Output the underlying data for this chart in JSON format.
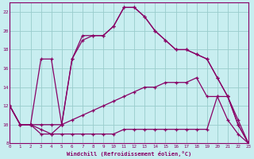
{
  "xlabel": "Windchill (Refroidissement éolien,°C)",
  "xlim": [
    0,
    23
  ],
  "ylim": [
    8,
    23
  ],
  "xticks": [
    0,
    1,
    2,
    3,
    4,
    5,
    6,
    7,
    8,
    9,
    10,
    11,
    12,
    13,
    14,
    15,
    16,
    17,
    18,
    19,
    20,
    21,
    22,
    23
  ],
  "yticks": [
    8,
    10,
    12,
    14,
    16,
    18,
    20,
    22
  ],
  "bg_color": "#c8eef0",
  "line_color": "#880066",
  "grid_color": "#99cccc",
  "lines": [
    {
      "x": [
        0,
        1,
        2,
        3,
        4,
        5,
        6,
        7,
        8,
        9,
        10,
        11,
        12,
        13,
        14,
        15,
        16,
        17,
        18,
        19,
        20,
        21,
        22,
        23
      ],
      "y": [
        12,
        10,
        10,
        9,
        9,
        10,
        17,
        19,
        19.5,
        19.5,
        20.5,
        22.5,
        22.5,
        21.5,
        20,
        19,
        18,
        18,
        17.5,
        17,
        15,
        13,
        10,
        8
      ]
    },
    {
      "x": [
        0,
        1,
        2,
        3,
        4,
        5,
        6,
        7,
        8,
        9,
        10,
        11,
        12,
        13,
        14,
        15,
        16,
        17,
        18,
        19,
        20,
        21,
        22,
        23
      ],
      "y": [
        12,
        10,
        10,
        17,
        17,
        10,
        17,
        19.5,
        19.5,
        19.5,
        20.5,
        22.5,
        22.5,
        21.5,
        20,
        19,
        18,
        18,
        17.5,
        17,
        15,
        13,
        10,
        8
      ]
    },
    {
      "x": [
        0,
        1,
        2,
        3,
        4,
        5,
        6,
        7,
        8,
        9,
        10,
        11,
        12,
        13,
        14,
        15,
        16,
        17,
        18,
        19,
        20,
        21,
        22,
        23
      ],
      "y": [
        12,
        10,
        10,
        10,
        10,
        10,
        10.5,
        11,
        11.5,
        12,
        12.5,
        13,
        13.5,
        14,
        14,
        14.5,
        14.5,
        14.5,
        15,
        13,
        13,
        13,
        10.5,
        8
      ]
    },
    {
      "x": [
        0,
        1,
        2,
        3,
        4,
        5,
        6,
        7,
        8,
        9,
        10,
        11,
        12,
        13,
        14,
        15,
        16,
        17,
        18,
        19,
        20,
        21,
        22,
        23
      ],
      "y": [
        12,
        10,
        10,
        9.5,
        9,
        9,
        9,
        9,
        9,
        9,
        9,
        9.5,
        9.5,
        9.5,
        9.5,
        9.5,
        9.5,
        9.5,
        9.5,
        9.5,
        13,
        10.5,
        9,
        8
      ]
    }
  ]
}
